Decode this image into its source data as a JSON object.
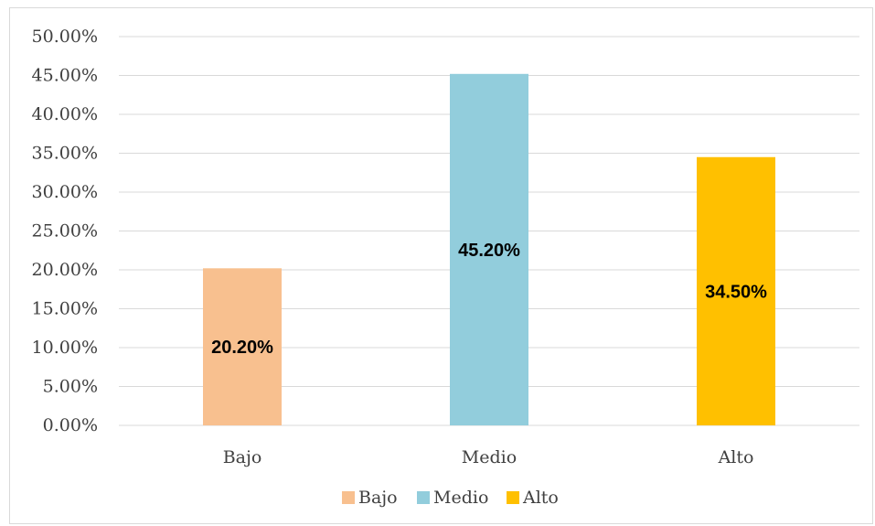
{
  "chart_data": {
    "type": "bar",
    "categories": [
      "Bajo",
      "Medio",
      "Alto"
    ],
    "values": [
      20.2,
      45.2,
      34.5
    ],
    "data_labels": [
      "20.20%",
      "45.20%",
      "34.50%"
    ],
    "colors": [
      "#F8C08F",
      "#92CDDC",
      "#FFC000"
    ],
    "ylim": [
      0,
      50
    ],
    "ytick_values": [
      0,
      5,
      10,
      15,
      20,
      25,
      30,
      35,
      40,
      45,
      50
    ],
    "ytick_labels": [
      "0.00%",
      "5.00%",
      "10.00%",
      "15.00%",
      "20.00%",
      "25.00%",
      "30.00%",
      "35.00%",
      "40.00%",
      "45.00%",
      "50.00%"
    ],
    "grid": true,
    "grid_color": "#d9d9d9",
    "legend": {
      "position": "bottom",
      "entries": [
        "Bajo",
        "Medio",
        "Alto"
      ]
    },
    "title": "",
    "xlabel": "",
    "ylabel": ""
  }
}
